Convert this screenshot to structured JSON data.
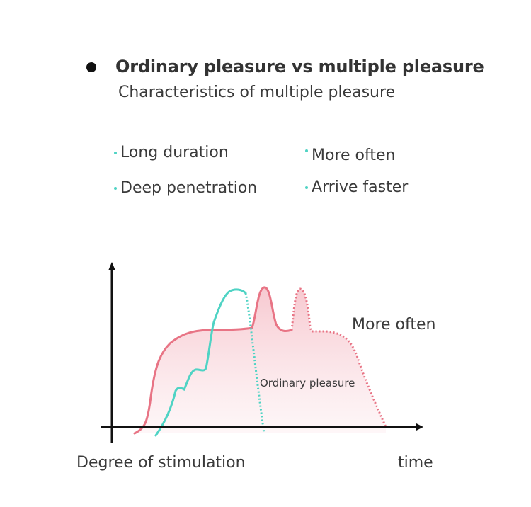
{
  "heading": "Ordinary pleasure vs multiple pleasure",
  "subheading": "Characteristics of multiple pleasure",
  "features": [
    "Long duration",
    "Deep penetration",
    "More often",
    "Arrive faster"
  ],
  "diagram": {
    "label_multiple": "More often",
    "label_ordinary": "Ordinary pleasure",
    "xlabel_left": "Degree of stimulation",
    "xlabel_right": "time"
  },
  "colors": {
    "ordinary_curve": "#4fd3c4",
    "multiple_curve": "#e87485",
    "multiple_fill": "#fbe4e7",
    "feature_dot": "#4fd3c4",
    "axis": "#111111"
  }
}
